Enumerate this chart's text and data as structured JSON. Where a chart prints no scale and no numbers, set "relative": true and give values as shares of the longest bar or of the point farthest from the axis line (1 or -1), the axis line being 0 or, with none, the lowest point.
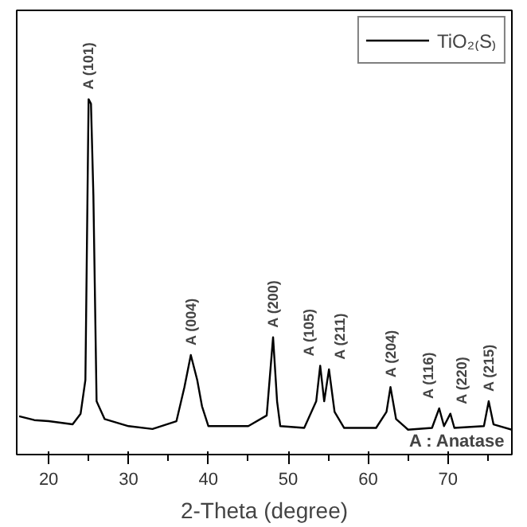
{
  "chart_data": {
    "type": "line",
    "relative": true,
    "xlabel": "2-Theta (degree)",
    "xlim": [
      16,
      78
    ],
    "xticks": [
      20,
      30,
      40,
      50,
      60,
      70
    ],
    "grid": false,
    "legend": "top right",
    "marker": "none",
    "line_style": "solid",
    "series": [
      {
        "name": "TiO₂₍S₎",
        "color": "#000000",
        "x": [
          16.3,
          18.2,
          20,
          23,
          24,
          24.6,
          25,
          25.3,
          25.6,
          26,
          27,
          30,
          33,
          36,
          37,
          37.8,
          38.6,
          39.2,
          40,
          45,
          47.3,
          48.1,
          48.6,
          49,
          52,
          53.5,
          54,
          54.5,
          55.1,
          55.8,
          57,
          61,
          62.3,
          62.8,
          63.5,
          65,
          68,
          68.9,
          69.5,
          70.3,
          70.8,
          74.5,
          75.1,
          75.7,
          78
        ],
        "values": [
          0.108,
          0.097,
          0.094,
          0.085,
          0.115,
          0.21,
          1.0,
          0.987,
          0.73,
          0.15,
          0.1,
          0.08,
          0.072,
          0.094,
          0.19,
          0.28,
          0.21,
          0.136,
          0.08,
          0.08,
          0.11,
          0.33,
          0.15,
          0.08,
          0.075,
          0.15,
          0.25,
          0.15,
          0.24,
          0.12,
          0.075,
          0.075,
          0.12,
          0.19,
          0.1,
          0.07,
          0.075,
          0.13,
          0.08,
          0.115,
          0.075,
          0.08,
          0.15,
          0.085,
          0.07
        ]
      }
    ],
    "annotations": [
      {
        "text": "A (101)",
        "x": 25,
        "y": 1.0
      },
      {
        "text": "A (004)",
        "x": 37.8,
        "y": 0.28
      },
      {
        "text": "A (200)",
        "x": 48.1,
        "y": 0.33
      },
      {
        "text": "A (105)",
        "x": 54,
        "y": 0.25
      },
      {
        "text": "A (211)",
        "x": 55.1,
        "y": 0.24
      },
      {
        "text": "A (204)",
        "x": 62.8,
        "y": 0.19
      },
      {
        "text": "A (116)",
        "x": 68.9,
        "y": 0.13
      },
      {
        "text": "A (220)",
        "x": 70.3,
        "y": 0.115
      },
      {
        "text": "A (215)",
        "x": 75.1,
        "y": 0.15
      },
      "A : Anatase"
    ]
  }
}
